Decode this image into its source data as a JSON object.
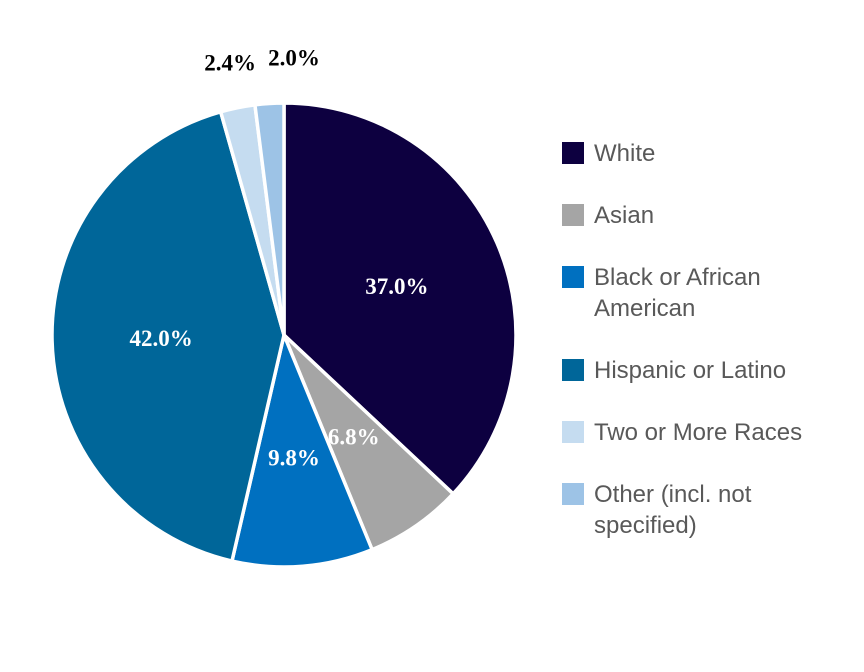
{
  "chart_data": {
    "type": "pie",
    "title": "",
    "start": "top",
    "direction": "clockwise",
    "legend_position": "right",
    "slices": [
      {
        "label": "White",
        "value": 37.0,
        "display": "37.0%",
        "color": "#0d0040",
        "label_color": "#ffffff"
      },
      {
        "label": "Asian",
        "value": 6.8,
        "display": "6.8%",
        "color": "#a5a5a5",
        "label_color": "#ffffff"
      },
      {
        "label": "Black or African American",
        "value": 9.8,
        "display": "9.8%",
        "color": "#0070c0",
        "label_color": "#ffffff"
      },
      {
        "label": "Hispanic or Latino",
        "value": 42.0,
        "display": "42.0%",
        "color": "#006699",
        "label_color": "#ffffff"
      },
      {
        "label": "Two or More Races",
        "value": 2.4,
        "display": "2.4%",
        "color": "#c5dcf0",
        "label_color": "#000000"
      },
      {
        "label": "Other (incl. not specified)",
        "value": 2.0,
        "display": "2.0%",
        "color": "#9dc3e6",
        "label_color": "#000000"
      }
    ]
  }
}
